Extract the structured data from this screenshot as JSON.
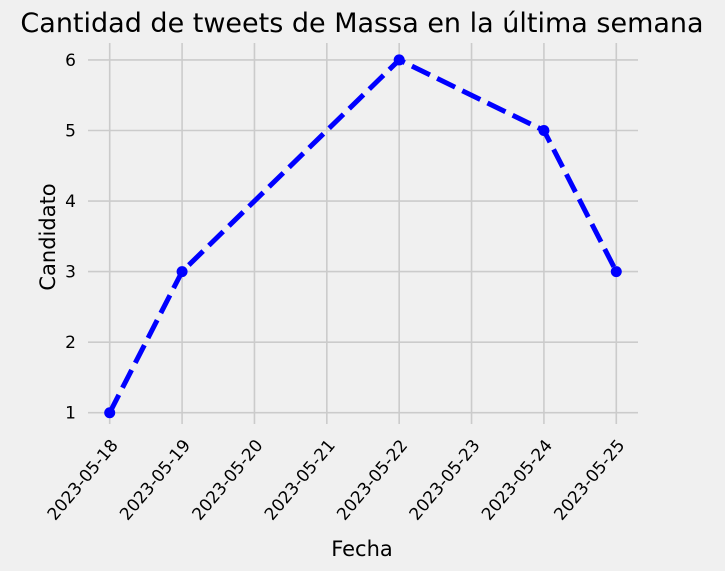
{
  "chart_data": {
    "type": "line",
    "title": "Cantidad de tweets de Massa en la última semana",
    "xlabel": "Fecha",
    "ylabel": "Candidato",
    "x_ticks": [
      "2023-05-18",
      "2023-05-19",
      "2023-05-20",
      "2023-05-21",
      "2023-05-22",
      "2023-05-23",
      "2023-05-24",
      "2023-05-25"
    ],
    "y_ticks": [
      1,
      2,
      3,
      4,
      5,
      6
    ],
    "xlim": [
      "2023-05-17.7",
      "2023-05-25.3"
    ],
    "ylim": [
      0.84,
      6.24
    ],
    "grid": true,
    "series": [
      {
        "x": [
          "2023-05-18",
          "2023-05-19",
          "2023-05-22",
          "2023-05-24",
          "2023-05-25"
        ],
        "values": [
          1,
          3,
          6,
          5,
          3
        ],
        "color": "#0000ff",
        "line_style": "dashed",
        "marker": "circle"
      }
    ],
    "background_color": "#f0f0f0"
  }
}
